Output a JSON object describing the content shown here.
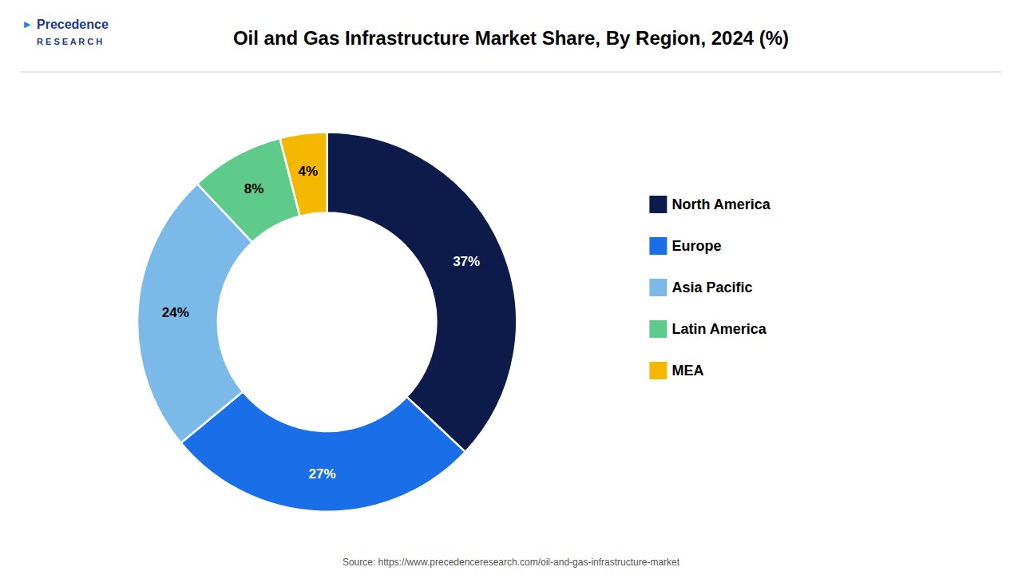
{
  "chart_data": {
    "type": "pie",
    "title": "Oil and Gas Infrastructure Market Share, By Region, 2024 (%)",
    "categories": [
      "North America",
      "Europe",
      "Asia Pacific",
      "Latin America",
      "MEA"
    ],
    "values": [
      37,
      27,
      24,
      8,
      4
    ],
    "value_labels": [
      "37%",
      "27%",
      "24%",
      "8%",
      "4%"
    ],
    "colors": [
      "#0d1b4b",
      "#1a6fe8",
      "#7ab9e8",
      "#5ecb8a",
      "#f5b800"
    ],
    "data_labels": true,
    "legend": "right",
    "annotations": [
      "▶",
      "Precedence",
      "R E S E A R C H",
      "Source: https://www.precedenceresearch.com/oil-and-gas-infrastructure-market"
    ]
  }
}
